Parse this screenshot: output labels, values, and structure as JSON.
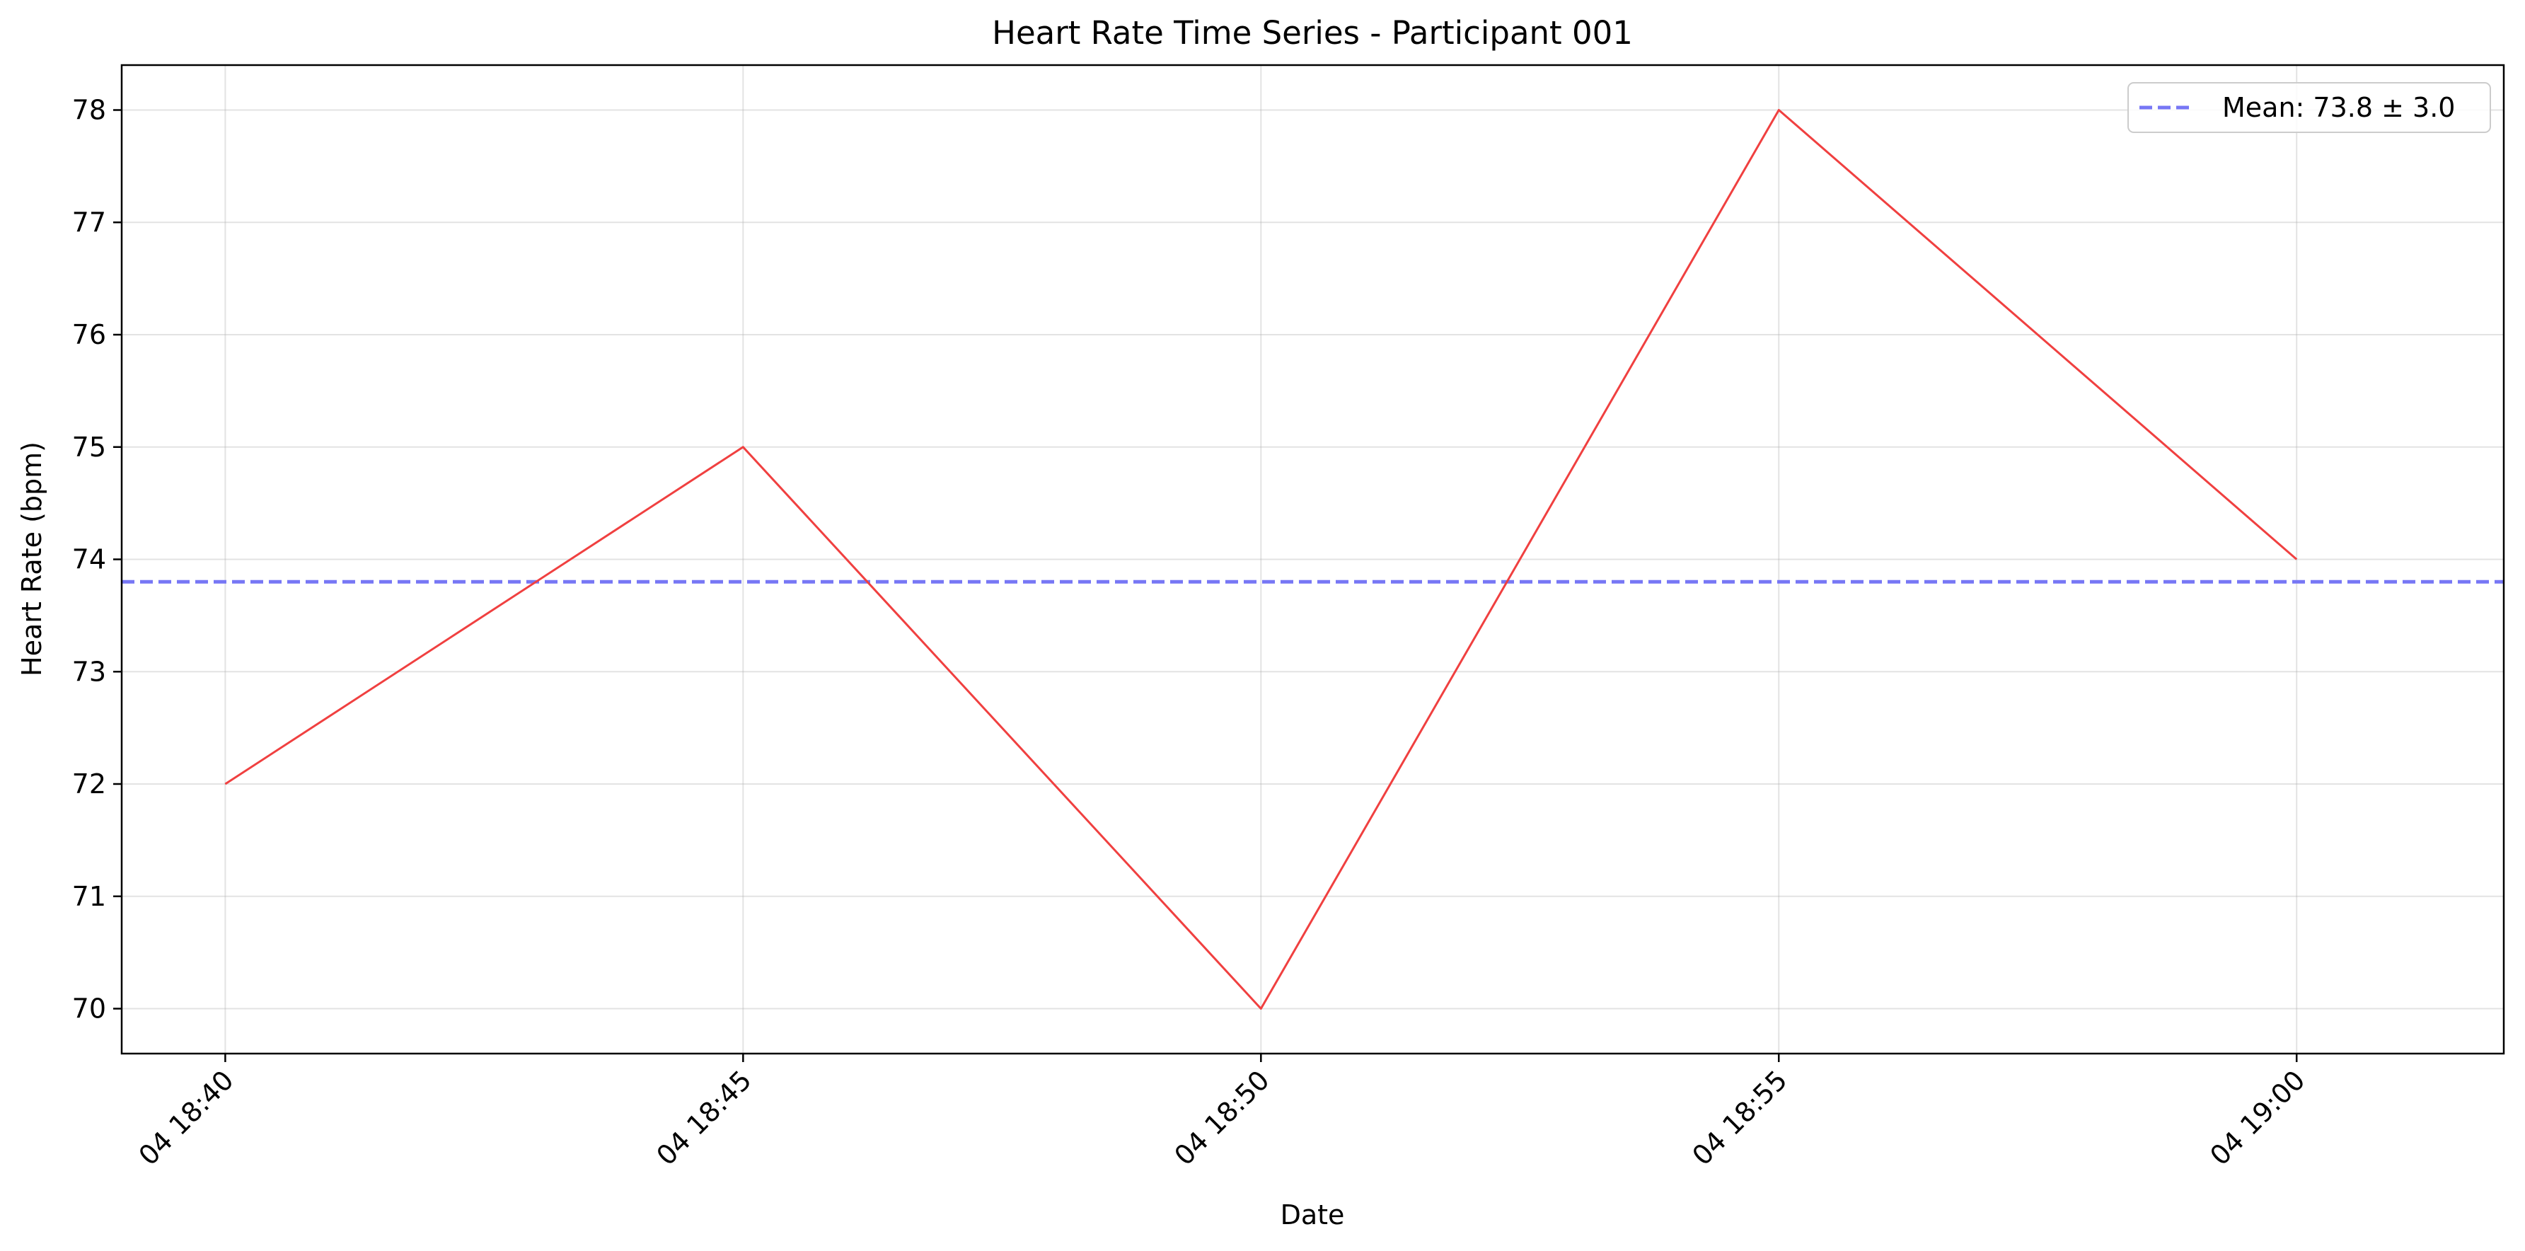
{
  "chart_data": {
    "type": "line",
    "title": "Heart Rate Time Series - Participant 001",
    "xlabel": "Date",
    "ylabel": "Heart Rate (bpm)",
    "x": [
      "04 18:40",
      "04 18:45",
      "04 18:50",
      "04 18:55",
      "04 19:00"
    ],
    "xticks": [
      "04 18:40",
      "04 18:45",
      "04 18:50",
      "04 18:55",
      "04 19:00"
    ],
    "xlim": [
      "04 18:39",
      "04 19:02"
    ],
    "yticks": [
      70,
      71,
      72,
      73,
      74,
      75,
      76,
      77,
      78
    ],
    "ylim": [
      69.6,
      78.4
    ],
    "grid": true,
    "legend_position": "top-right",
    "series": [
      {
        "values": [
          72,
          75,
          70,
          78,
          74
        ],
        "color": "#f04040",
        "style": "solid"
      }
    ],
    "reference_lines": [
      {
        "name": "Mean: 73.8 ± 3.0",
        "value": 73.8,
        "color": "#7777f5",
        "style": "dashed"
      }
    ]
  }
}
